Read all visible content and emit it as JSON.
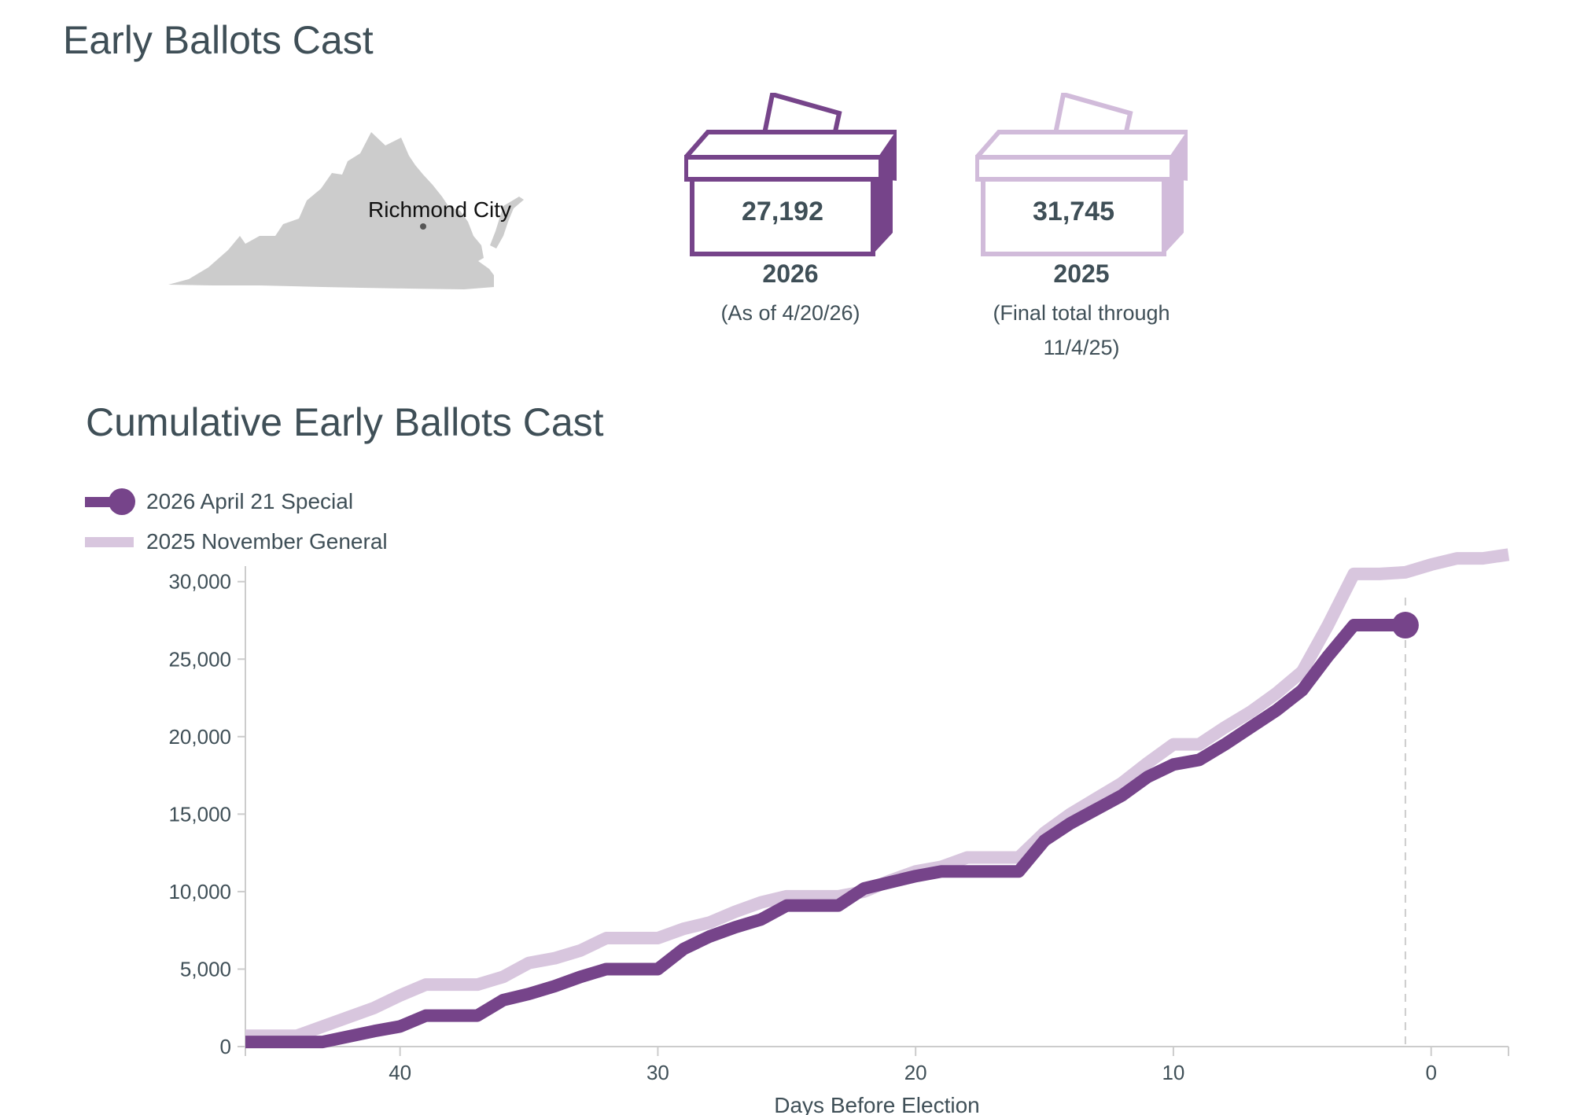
{
  "header": {
    "title": "Early Ballots Cast"
  },
  "map": {
    "label": "Richmond City"
  },
  "cards": [
    {
      "count": "27,192",
      "year": "2026",
      "note": "(As of 4/20/26)",
      "color": "#76448a"
    },
    {
      "count": "31,745",
      "year": "2025",
      "note": "(Final total through 11/4/25)",
      "color": "#d1bbda"
    }
  ],
  "chart_data": {
    "type": "line",
    "title": "Cumulative Early Ballots Cast",
    "xlabel": "Days Before Election",
    "ylabel": "",
    "xlim": [
      46,
      -3
    ],
    "ylim": [
      0,
      31000
    ],
    "xticks": [
      "40",
      "30",
      "20",
      "10",
      "0"
    ],
    "xtick_values": [
      40,
      30,
      20,
      10,
      0
    ],
    "yticks": [
      "0",
      "5,000",
      "10,000",
      "15,000",
      "20,000",
      "25,000",
      "30,000"
    ],
    "ytick_values": [
      0,
      5000,
      10000,
      15000,
      20000,
      25000,
      30000
    ],
    "election_day_marker": 1,
    "series": [
      {
        "name": "2025 November General",
        "color": "#d8c6de",
        "x": [
          46,
          44,
          43,
          41,
          40,
          39,
          37,
          36,
          35,
          34,
          33,
          32,
          30,
          29,
          28,
          27,
          26,
          25,
          23,
          22,
          21,
          20,
          19,
          18,
          16,
          15,
          14,
          13,
          12,
          11,
          10,
          9,
          8,
          7,
          6,
          5,
          4,
          3,
          2,
          1,
          0,
          -1,
          -2,
          -3
        ],
        "values": [
          700,
          700,
          1300,
          2500,
          3300,
          4000,
          4000,
          4500,
          5400,
          5700,
          6200,
          7000,
          7000,
          7600,
          8000,
          8700,
          9300,
          9700,
          9700,
          10000,
          10700,
          11300,
          11600,
          12200,
          12200,
          13800,
          15000,
          16000,
          17000,
          18300,
          19500,
          19500,
          20600,
          21600,
          22800,
          24200,
          27200,
          30500,
          30500,
          30600,
          31100,
          31500,
          31500,
          31745
        ]
      },
      {
        "name": "2026 April 21 Special",
        "color": "#76448a",
        "x": [
          46,
          43,
          41,
          40,
          39,
          37,
          36,
          35,
          34,
          33,
          32,
          30,
          29,
          28,
          27,
          26,
          25,
          23,
          22,
          20,
          19,
          16,
          15,
          14,
          13,
          12,
          11,
          10,
          9,
          8,
          7,
          6,
          5,
          4,
          3,
          1
        ],
        "values": [
          300,
          300,
          1000,
          1300,
          2000,
          2000,
          3000,
          3400,
          3900,
          4500,
          5000,
          5000,
          6300,
          7100,
          7700,
          8200,
          9100,
          9100,
          10200,
          11000,
          11300,
          11300,
          13300,
          14400,
          15300,
          16200,
          17400,
          18200,
          18500,
          19500,
          20600,
          21700,
          23000,
          25200,
          27192,
          27192
        ]
      }
    ]
  }
}
